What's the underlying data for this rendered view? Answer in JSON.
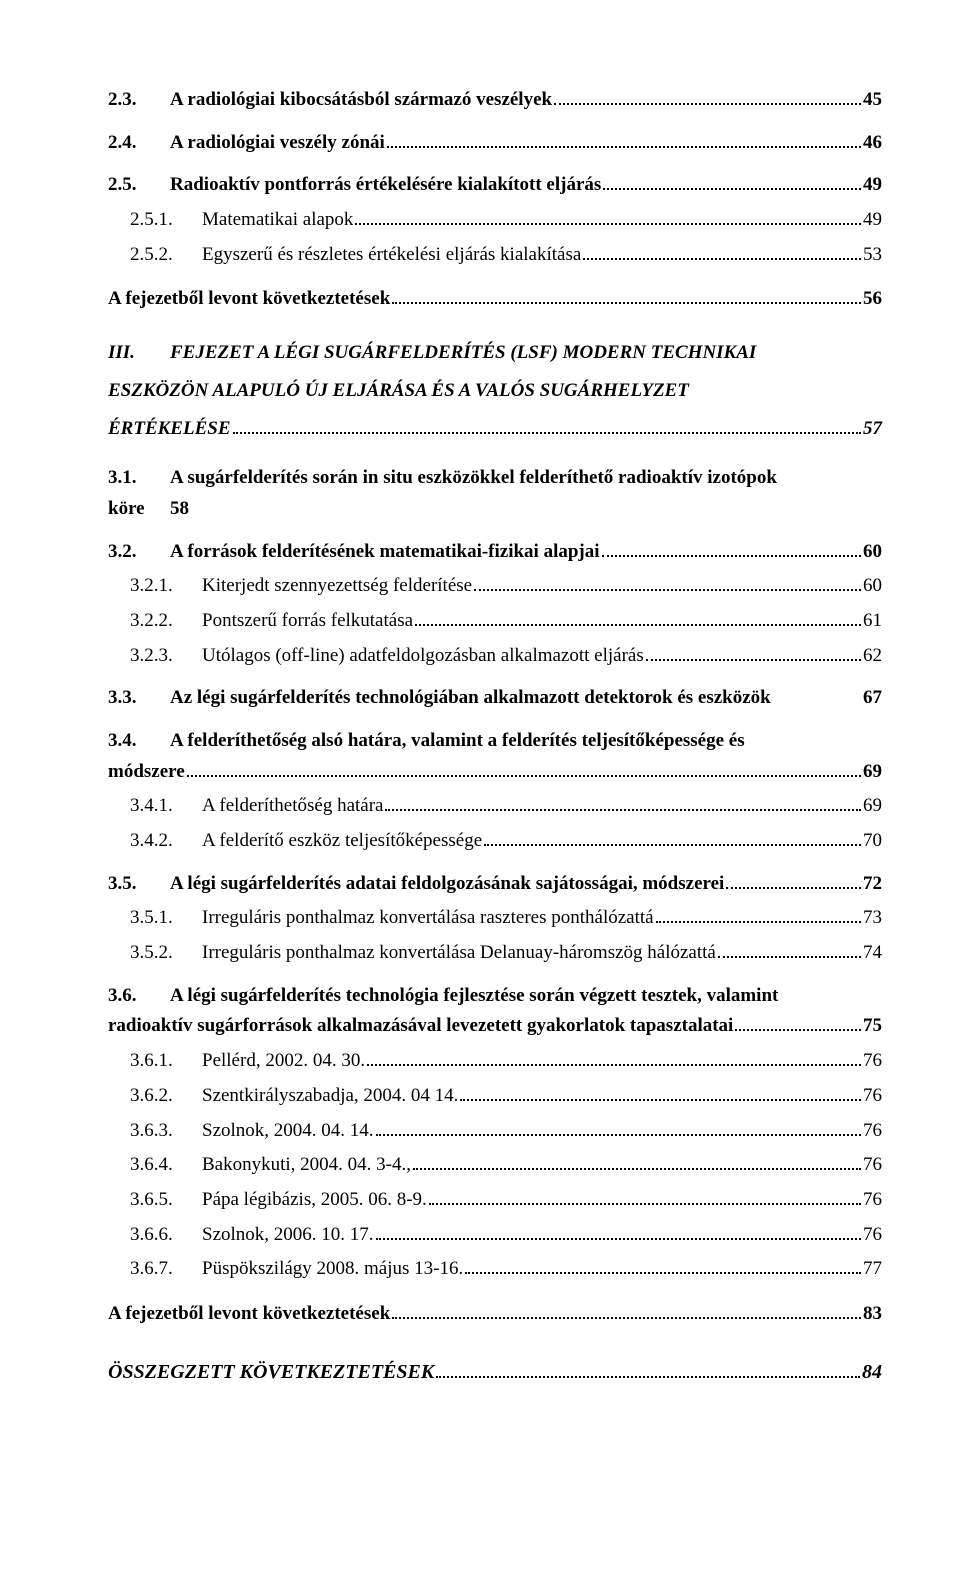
{
  "entries": [
    {
      "lvl": "a",
      "bold": true,
      "num": "2.3.",
      "title": "A radiológiai kibocsátásból származó veszélyek",
      "page": "45"
    },
    {
      "lvl": "a",
      "bold": true,
      "num": "2.4.",
      "title": "A radiológiai veszély zónái",
      "page": "46"
    },
    {
      "lvl": "a",
      "bold": true,
      "num": "2.5.",
      "title": "Radioaktív pontforrás értékelésére kialakított eljárás",
      "page": "49"
    },
    {
      "lvl": "b",
      "num": "2.5.1.",
      "title": "Matematikai alapok",
      "page": "49"
    },
    {
      "lvl": "b",
      "num": "2.5.2.",
      "title": "Egyszerű és részletes értékelési eljárás kialakítása",
      "page": "53"
    },
    {
      "lvl": "d",
      "bold": true,
      "title": "A fejezetből levont következtetések",
      "page": "56"
    },
    {
      "lvl": "chapter",
      "num": "III.",
      "title_a": "FEJEZET  A LÉGI SUGÁRFELDERÍTÉS (LSF) MODERN TECHNIKAI",
      "title_b": "ESZKÖZÖN ALAPULÓ ÚJ ELJÁRÁSA ÉS A VALÓS SUGÁRHELYZET",
      "title_c": "ÉRTÉKELÉSE",
      "page": "57"
    },
    {
      "lvl": "a_kore",
      "bold": true,
      "num": "3.1.",
      "title": "A sugárfelderítés során in situ eszközökkel felderíthető radioaktív izotópok",
      "kore_label": "köre",
      "kore_page": "58"
    },
    {
      "lvl": "a",
      "bold": true,
      "num": "3.2.",
      "title": "A források felderítésének matematikai-fizikai alapjai",
      "page": "60"
    },
    {
      "lvl": "b",
      "num": "3.2.1.",
      "title": "Kiterjedt szennyezettség felderítése",
      "page": "60"
    },
    {
      "lvl": "b",
      "num": "3.2.2.",
      "title": "Pontszerű forrás felkutatása",
      "page": "61"
    },
    {
      "lvl": "b",
      "num": "3.2.3.",
      "title": "Utólagos (off-line) adatfeldolgozásban alkalmazott eljárás",
      "page": "62"
    },
    {
      "lvl": "a_noDots",
      "bold": true,
      "num": "3.3.",
      "title": "Az légi sugárfelderítés technológiában alkalmazott detektorok és eszközök",
      "page": "67"
    },
    {
      "lvl": "a_two",
      "bold": true,
      "num": "3.4.",
      "title_a": "A felderíthetőség alsó határa, valamint a felderítés teljesítőképessége és",
      "title_b": "módszere",
      "page": "69"
    },
    {
      "lvl": "b",
      "num": "3.4.1.",
      "title": "A felderíthetőség határa",
      "page": "69"
    },
    {
      "lvl": "b",
      "num": "3.4.2.",
      "title": "A felderítő eszköz teljesítőképessége",
      "page": "70"
    },
    {
      "lvl": "a",
      "bold": true,
      "num": "3.5.",
      "title": "A légi sugárfelderítés adatai feldolgozásának sajátosságai, módszerei",
      "page": "72"
    },
    {
      "lvl": "b",
      "num": "3.5.1.",
      "title": "Irreguláris ponthalmaz konvertálása raszteres ponthálózattá",
      "page": "73"
    },
    {
      "lvl": "b",
      "num": "3.5.2.",
      "title": "Irreguláris ponthalmaz konvertálása Delanuay-háromszög hálózattá",
      "page": "74"
    },
    {
      "lvl": "a_two",
      "bold": true,
      "num": "3.6.",
      "title_a": "A légi sugárfelderítés technológia fejlesztése során végzett tesztek, valamint",
      "title_b": "radioaktív sugárforrások alkalmazásával levezetett gyakorlatok tapasztalatai",
      "page": "75"
    },
    {
      "lvl": "b",
      "num": "3.6.1.",
      "title": "Pellérd, 2002. 04. 30.",
      "page": "76"
    },
    {
      "lvl": "b",
      "num": "3.6.2.",
      "title": "Szentkirályszabadja, 2004. 04 14.",
      "page": "76"
    },
    {
      "lvl": "b",
      "num": "3.6.3.",
      "title": "Szolnok, 2004. 04. 14.",
      "page": "76"
    },
    {
      "lvl": "b",
      "num": "3.6.4.",
      "title": "Bakonykuti, 2004. 04. 3-4.,",
      "page": "76"
    },
    {
      "lvl": "b",
      "num": "3.6.5.",
      "title": "Pápa légibázis, 2005. 06. 8-9.",
      "page": "76"
    },
    {
      "lvl": "b",
      "num": "3.6.6.",
      "title": "Szolnok, 2006. 10. 17.",
      "page": "76"
    },
    {
      "lvl": "b",
      "num": "3.6.7.",
      "title": "Püspökszilágy 2008. május 13-16.",
      "page": "77"
    },
    {
      "lvl": "d",
      "bold": true,
      "title": "A fejezetből levont következtetések",
      "page": "83"
    },
    {
      "lvl": "d_big",
      "bold": true,
      "italic": true,
      "title": "ÖSSZEGZETT KÖVETKEZTETÉSEK",
      "page": "84"
    }
  ]
}
